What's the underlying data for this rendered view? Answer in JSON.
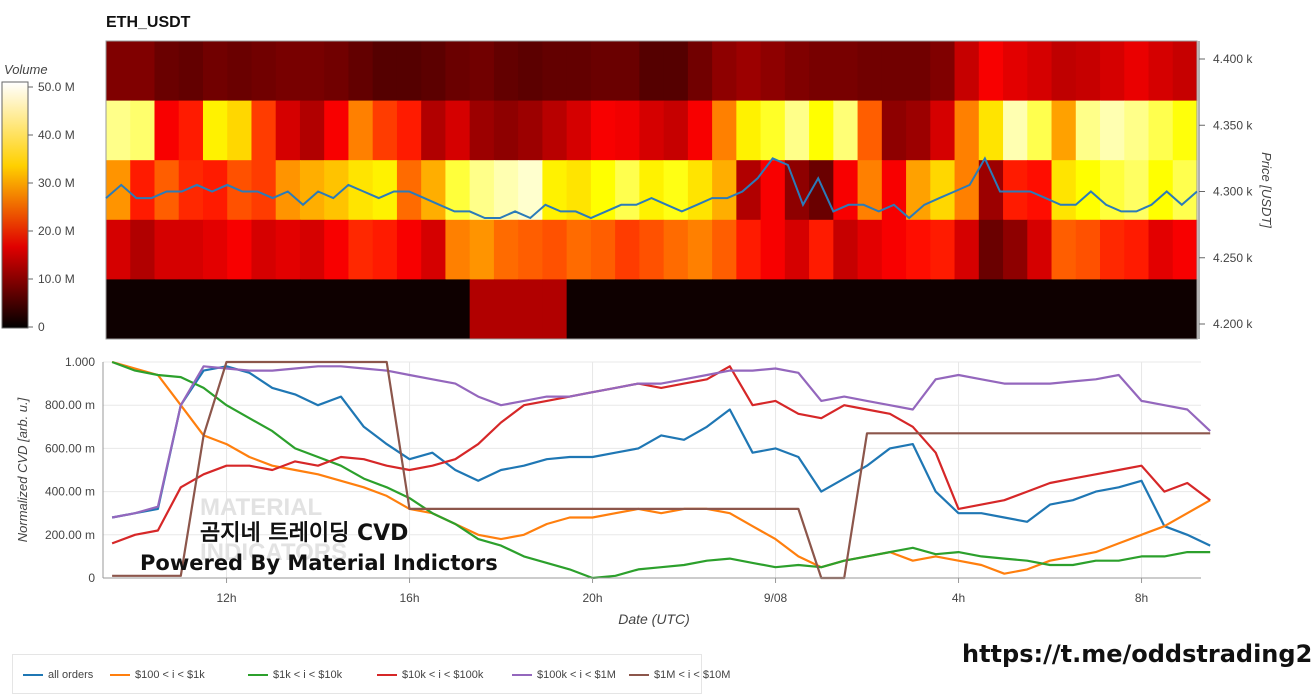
{
  "title": "ETH_USDT",
  "colorbar": {
    "label": "Volume",
    "ticks": [
      "50.0 M",
      "40.0 M",
      "30.0 M",
      "20.0 M",
      "10.0 M",
      "0"
    ]
  },
  "heatmap": {
    "type": "heatmap",
    "ylabel": "Price [USDT]",
    "price_ticks": [
      "4.400 k",
      "4.350 k",
      "4.300 k",
      "4.250 k",
      "4.200 k"
    ],
    "rows": [
      {
        "price_band": "4.375k-4.425k",
        "level": [
          0.18,
          0.18,
          0.15,
          0.14,
          0.16,
          0.15,
          0.16,
          0.17,
          0.17,
          0.16,
          0.14,
          0.12,
          0.12,
          0.13,
          0.15,
          0.16,
          0.14,
          0.13,
          0.14,
          0.14,
          0.15,
          0.15,
          0.12,
          0.12,
          0.16,
          0.2,
          0.22,
          0.2,
          0.18,
          0.17,
          0.17,
          0.16,
          0.16,
          0.16,
          0.18,
          0.28,
          0.35,
          0.32,
          0.3,
          0.27,
          0.28,
          0.3,
          0.33,
          0.3,
          0.28
        ]
      },
      {
        "price_band": "4.325k-4.375k",
        "level": [
          0.88,
          0.85,
          0.35,
          0.4,
          0.72,
          0.68,
          0.45,
          0.3,
          0.25,
          0.35,
          0.55,
          0.45,
          0.4,
          0.25,
          0.3,
          0.22,
          0.2,
          0.22,
          0.26,
          0.3,
          0.35,
          0.34,
          0.3,
          0.28,
          0.35,
          0.55,
          0.72,
          0.78,
          0.88,
          0.74,
          0.86,
          0.5,
          0.2,
          0.22,
          0.3,
          0.55,
          0.7,
          0.92,
          0.82,
          0.6,
          0.88,
          0.92,
          0.88,
          0.82,
          0.75
        ]
      },
      {
        "price_band": "4.275k-4.325k",
        "level": [
          0.58,
          0.4,
          0.5,
          0.42,
          0.4,
          0.48,
          0.45,
          0.58,
          0.62,
          0.65,
          0.7,
          0.72,
          0.52,
          0.62,
          0.8,
          0.88,
          0.92,
          0.95,
          0.72,
          0.7,
          0.74,
          0.82,
          0.72,
          0.76,
          0.7,
          0.62,
          0.25,
          0.35,
          0.2,
          0.15,
          0.35,
          0.55,
          0.35,
          0.6,
          0.68,
          0.55,
          0.22,
          0.4,
          0.38,
          0.7,
          0.74,
          0.8,
          0.84,
          0.74,
          0.82
        ]
      },
      {
        "price_band": "4.225k-4.275k",
        "level": [
          0.3,
          0.25,
          0.3,
          0.3,
          0.32,
          0.35,
          0.3,
          0.32,
          0.3,
          0.35,
          0.42,
          0.4,
          0.35,
          0.3,
          0.55,
          0.58,
          0.52,
          0.5,
          0.48,
          0.52,
          0.5,
          0.45,
          0.48,
          0.52,
          0.55,
          0.5,
          0.4,
          0.35,
          0.3,
          0.4,
          0.28,
          0.32,
          0.35,
          0.38,
          0.4,
          0.3,
          0.15,
          0.2,
          0.3,
          0.5,
          0.48,
          0.42,
          0.4,
          0.32,
          0.35
        ]
      },
      {
        "price_band": "4.175k-4.225k",
        "level": [
          0.02,
          0.02,
          0.02,
          0.02,
          0.02,
          0.02,
          0.02,
          0.02,
          0.02,
          0.02,
          0.02,
          0.02,
          0.02,
          0.02,
          0.02,
          0.25,
          0.25,
          0.25,
          0.25,
          0.02,
          0.02,
          0.02,
          0.02,
          0.02,
          0.02,
          0.02,
          0.02,
          0.02,
          0.02,
          0.02,
          0.02,
          0.02,
          0.02,
          0.02,
          0.02,
          0.02,
          0.02,
          0.02,
          0.02,
          0.02,
          0.02,
          0.02,
          0.02,
          0.02,
          0.02
        ]
      }
    ],
    "price_line": [
      4295,
      4305,
      4295,
      4295,
      4300,
      4300,
      4305,
      4300,
      4305,
      4300,
      4300,
      4295,
      4300,
      4290,
      4300,
      4295,
      4305,
      4300,
      4295,
      4300,
      4300,
      4295,
      4290,
      4285,
      4285,
      4280,
      4280,
      4285,
      4280,
      4290,
      4285,
      4285,
      4280,
      4285,
      4290,
      4290,
      4295,
      4290,
      4285,
      4290,
      4295,
      4295,
      4300,
      4310,
      4325,
      4320,
      4290,
      4310,
      4285,
      4290,
      4290,
      4285,
      4290,
      4280,
      4290,
      4295,
      4300,
      4305,
      4325,
      4300,
      4300,
      4300,
      4295,
      4290,
      4290,
      4300,
      4290,
      4285,
      4285,
      4290,
      4300,
      4290,
      4300
    ]
  },
  "chart_data": {
    "type": "line",
    "xlabel": "Date (UTC)",
    "ylabel": "Normalized CVD [arb. u.]",
    "x_ticks": [
      "12h",
      "16h",
      "20h",
      "9/08",
      "4h",
      "8h"
    ],
    "y_ticks": [
      "0",
      "200.00 m",
      "400.00 m",
      "600.00 m",
      "800.00 m",
      "1.000"
    ],
    "ylim": [
      0,
      1
    ],
    "x_hours": [
      9.5,
      10,
      10.5,
      11,
      11.5,
      12,
      12.5,
      13,
      13.5,
      14,
      14.5,
      15,
      15.5,
      16,
      16.5,
      17,
      17.5,
      18,
      18.5,
      19,
      19.5,
      20,
      20.5,
      21,
      21.5,
      22,
      22.5,
      23,
      23.5,
      24,
      24.5,
      25,
      25.5,
      26,
      26.5,
      27,
      27.5,
      28,
      28.5,
      29,
      29.5,
      30,
      30.5,
      31,
      31.5,
      32,
      32.5,
      33,
      33.5
    ],
    "xlim": [
      9.3,
      33.3
    ],
    "series": [
      {
        "name": "all orders",
        "color": "#1f77b4",
        "values": [
          0.28,
          0.3,
          0.32,
          0.8,
          0.96,
          0.98,
          0.95,
          0.88,
          0.85,
          0.8,
          0.84,
          0.7,
          0.62,
          0.55,
          0.58,
          0.5,
          0.45,
          0.5,
          0.52,
          0.55,
          0.56,
          0.56,
          0.58,
          0.6,
          0.66,
          0.64,
          0.7,
          0.78,
          0.58,
          0.6,
          0.56,
          0.4,
          0.46,
          0.52,
          0.6,
          0.62,
          0.4,
          0.3,
          0.3,
          0.28,
          0.26,
          0.34,
          0.36,
          0.4,
          0.42,
          0.45,
          0.24,
          0.2,
          0.15
        ]
      },
      {
        "name": "$100 < i < $1k",
        "color": "#ff7f0e",
        "values": [
          1.0,
          0.97,
          0.94,
          0.8,
          0.66,
          0.62,
          0.56,
          0.52,
          0.5,
          0.48,
          0.45,
          0.42,
          0.38,
          0.32,
          0.3,
          0.25,
          0.2,
          0.18,
          0.2,
          0.25,
          0.28,
          0.28,
          0.3,
          0.32,
          0.3,
          0.32,
          0.32,
          0.3,
          0.24,
          0.18,
          0.1,
          0.05,
          0.08,
          0.1,
          0.12,
          0.08,
          0.1,
          0.08,
          0.06,
          0.02,
          0.04,
          0.08,
          0.1,
          0.12,
          0.16,
          0.2,
          0.24,
          0.3,
          0.36
        ]
      },
      {
        "name": "$1k < i < $10k",
        "color": "#2ca02c",
        "values": [
          1.0,
          0.96,
          0.94,
          0.93,
          0.88,
          0.8,
          0.74,
          0.68,
          0.6,
          0.56,
          0.52,
          0.46,
          0.42,
          0.37,
          0.3,
          0.25,
          0.18,
          0.15,
          0.1,
          0.07,
          0.04,
          0.0,
          0.01,
          0.04,
          0.05,
          0.06,
          0.08,
          0.09,
          0.07,
          0.05,
          0.06,
          0.05,
          0.08,
          0.1,
          0.12,
          0.14,
          0.11,
          0.12,
          0.1,
          0.09,
          0.08,
          0.06,
          0.06,
          0.08,
          0.08,
          0.1,
          0.1,
          0.12,
          0.12
        ]
      },
      {
        "name": "$10k < i < $100k",
        "color": "#d62728",
        "values": [
          0.16,
          0.2,
          0.22,
          0.42,
          0.48,
          0.52,
          0.52,
          0.5,
          0.54,
          0.52,
          0.56,
          0.55,
          0.52,
          0.5,
          0.52,
          0.55,
          0.62,
          0.72,
          0.8,
          0.82,
          0.84,
          0.86,
          0.88,
          0.9,
          0.88,
          0.9,
          0.92,
          0.98,
          0.8,
          0.82,
          0.76,
          0.74,
          0.8,
          0.78,
          0.76,
          0.7,
          0.58,
          0.32,
          0.34,
          0.36,
          0.4,
          0.44,
          0.46,
          0.48,
          0.5,
          0.52,
          0.4,
          0.44,
          0.36
        ]
      },
      {
        "name": "$100k < i < $1M",
        "color": "#9467bd",
        "values": [
          0.28,
          0.3,
          0.33,
          0.8,
          0.98,
          0.97,
          0.96,
          0.96,
          0.97,
          0.98,
          0.98,
          0.97,
          0.96,
          0.94,
          0.92,
          0.9,
          0.84,
          0.8,
          0.82,
          0.84,
          0.84,
          0.86,
          0.88,
          0.9,
          0.9,
          0.92,
          0.94,
          0.96,
          0.96,
          0.97,
          0.95,
          0.82,
          0.84,
          0.82,
          0.8,
          0.78,
          0.92,
          0.94,
          0.92,
          0.9,
          0.9,
          0.9,
          0.91,
          0.92,
          0.94,
          0.82,
          0.8,
          0.78,
          0.68
        ]
      },
      {
        "name": "$1M < i < $10M",
        "color": "#8c564b",
        "values": [
          0.01,
          0.01,
          0.01,
          0.01,
          0.66,
          1.0,
          1.0,
          1.0,
          1.0,
          1.0,
          1.0,
          1.0,
          1.0,
          0.32,
          0.32,
          0.32,
          0.32,
          0.32,
          0.32,
          0.32,
          0.32,
          0.32,
          0.32,
          0.32,
          0.32,
          0.32,
          0.32,
          0.32,
          0.32,
          0.32,
          0.32,
          0.0,
          0.0,
          0.67,
          0.67,
          0.67,
          0.67,
          0.67,
          0.67,
          0.67,
          0.67,
          0.67,
          0.67,
          0.67,
          0.67,
          0.67,
          0.67,
          0.67,
          0.67
        ]
      }
    ]
  },
  "watermark": {
    "line1": "MATERIAL",
    "line2": "INDICATORS"
  },
  "overlay": {
    "line1": "곰지네 트레이딩 CVD",
    "line2": "Powered By Material Indictors"
  },
  "link": "https://t.me/oddstrading2"
}
